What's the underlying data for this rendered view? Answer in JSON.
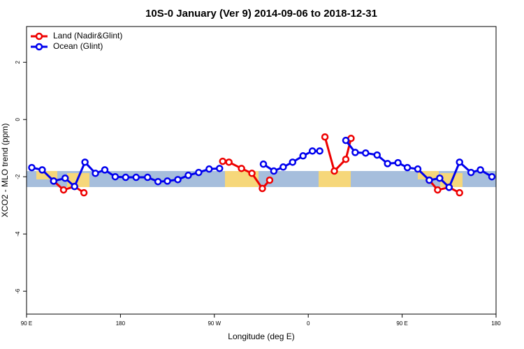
{
  "chart_data": {
    "type": "line",
    "title": "10S-0 January (Ver 9)   2014-09-06 to 2018-12-31",
    "xlabel": "Longitude (deg E)",
    "ylabel": "XCO2 - MLO trend (ppm)",
    "xlim": [
      90,
      540
    ],
    "ylim": [
      -6.8,
      3.25
    ],
    "xticks": [
      {
        "value": 90,
        "label": "90 E"
      },
      180,
      {
        "value": 270,
        "label": "90 W"
      },
      {
        "value": 360,
        "label": "0"
      },
      {
        "value": 450,
        "label": "90 E"
      },
      {
        "value": 540,
        "label": "180"
      }
    ],
    "yticks": [
      -6,
      -4,
      -2,
      0,
      2
    ],
    "legend": "top-left",
    "series": [
      {
        "name": "Land (Nadir&Glint)",
        "color": "#ee0000",
        "x": [
          116,
          125.5,
          136,
          145,
          null,
          278,
          284,
          296,
          306,
          316,
          323,
          null,
          376,
          385,
          396,
          401,
          null,
          476,
          484,
          495,
          505
        ],
        "values": [
          -2.15,
          -2.46,
          -2.34,
          -2.56,
          null,
          -1.46,
          -1.49,
          -1.71,
          -1.88,
          -2.41,
          -2.12,
          null,
          -0.61,
          -1.8,
          -1.39,
          -0.66,
          null,
          -2.12,
          -2.46,
          -2.37,
          -2.56
        ]
      },
      {
        "name": "Ocean (Glint)",
        "color": "#0000ee",
        "x": [
          95,
          105,
          116,
          127,
          136,
          146,
          156,
          165,
          175,
          185,
          195,
          206,
          216,
          225,
          235,
          245,
          255,
          265,
          275,
          null,
          317,
          327,
          336,
          345,
          355,
          364,
          371,
          null,
          396,
          405,
          415,
          426,
          436,
          446,
          455,
          465,
          476,
          486,
          495,
          505,
          516,
          525,
          536
        ],
        "values": [
          -1.68,
          -1.76,
          -2.15,
          -2.05,
          -2.34,
          -1.49,
          -1.88,
          -1.76,
          -2.0,
          -2.02,
          -2.02,
          -2.02,
          -2.17,
          -2.15,
          -2.1,
          -1.95,
          -1.85,
          -1.73,
          -1.71,
          null,
          -1.56,
          -1.8,
          -1.66,
          -1.49,
          -1.27,
          -1.1,
          -1.1,
          null,
          -0.73,
          -1.15,
          -1.17,
          -1.24,
          -1.54,
          -1.51,
          -1.68,
          -1.73,
          -2.12,
          -2.05,
          -2.37,
          -1.49,
          -1.85,
          -1.76,
          -2.0
        ]
      }
    ]
  }
}
